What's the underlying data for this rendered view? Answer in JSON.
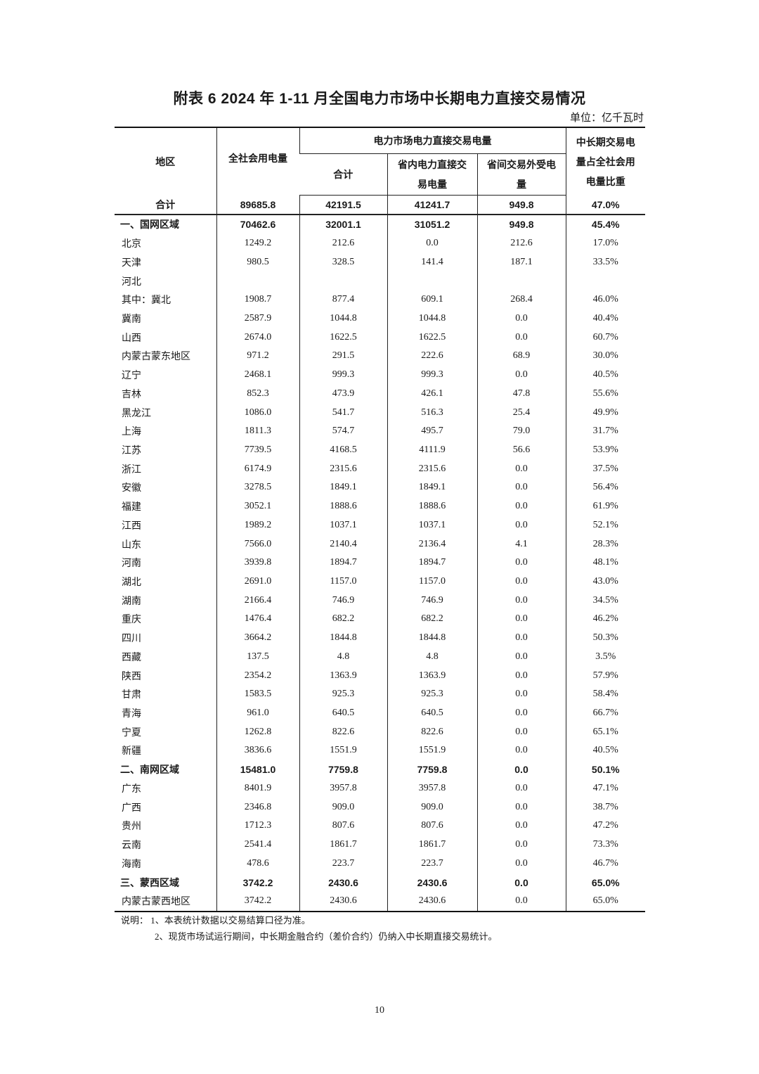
{
  "title": "附表 6   2024 年 1-11 月全国电力市场中长期电力直接交易情况",
  "unit": "单位：亿千瓦时",
  "columns": {
    "region": "地区",
    "total_consumption": "全社会用电量",
    "direct_trade_group": "电力市场电力直接交易电量",
    "direct_total": "合计",
    "intra_province": "省内电力直接交易电量",
    "inter_province": "省间交易外受电量",
    "share": "中长期交易电量占全社会用电量比重"
  },
  "rows": [
    {
      "type": "total",
      "region": "合计",
      "values": [
        "89685.8",
        "42191.5",
        "41241.7",
        "949.8",
        "47.0%"
      ]
    },
    {
      "type": "region",
      "region": "一、国网区域",
      "values": [
        "70462.6",
        "32001.1",
        "31051.2",
        "949.8",
        "45.4%"
      ]
    },
    {
      "region": "北京",
      "values": [
        "1249.2",
        "212.6",
        "0.0",
        "212.6",
        "17.0%"
      ]
    },
    {
      "region": "天津",
      "values": [
        "980.5",
        "328.5",
        "141.4",
        "187.1",
        "33.5%"
      ]
    },
    {
      "region": "河北",
      "values": [
        "",
        "",
        "",
        "",
        ""
      ]
    },
    {
      "region": "其中：冀北",
      "values": [
        "1908.7",
        "877.4",
        "609.1",
        "268.4",
        "46.0%"
      ]
    },
    {
      "region": "冀南",
      "values": [
        "2587.9",
        "1044.8",
        "1044.8",
        "0.0",
        "40.4%"
      ]
    },
    {
      "region": "山西",
      "values": [
        "2674.0",
        "1622.5",
        "1622.5",
        "0.0",
        "60.7%"
      ]
    },
    {
      "region": "内蒙古蒙东地区",
      "values": [
        "971.2",
        "291.5",
        "222.6",
        "68.9",
        "30.0%"
      ]
    },
    {
      "region": "辽宁",
      "values": [
        "2468.1",
        "999.3",
        "999.3",
        "0.0",
        "40.5%"
      ]
    },
    {
      "region": "吉林",
      "values": [
        "852.3",
        "473.9",
        "426.1",
        "47.8",
        "55.6%"
      ]
    },
    {
      "region": "黑龙江",
      "values": [
        "1086.0",
        "541.7",
        "516.3",
        "25.4",
        "49.9%"
      ]
    },
    {
      "region": "上海",
      "values": [
        "1811.3",
        "574.7",
        "495.7",
        "79.0",
        "31.7%"
      ]
    },
    {
      "region": "江苏",
      "values": [
        "7739.5",
        "4168.5",
        "4111.9",
        "56.6",
        "53.9%"
      ]
    },
    {
      "region": "浙江",
      "values": [
        "6174.9",
        "2315.6",
        "2315.6",
        "0.0",
        "37.5%"
      ]
    },
    {
      "region": "安徽",
      "values": [
        "3278.5",
        "1849.1",
        "1849.1",
        "0.0",
        "56.4%"
      ]
    },
    {
      "region": "福建",
      "values": [
        "3052.1",
        "1888.6",
        "1888.6",
        "0.0",
        "61.9%"
      ]
    },
    {
      "region": "江西",
      "values": [
        "1989.2",
        "1037.1",
        "1037.1",
        "0.0",
        "52.1%"
      ]
    },
    {
      "region": "山东",
      "values": [
        "7566.0",
        "2140.4",
        "2136.4",
        "4.1",
        "28.3%"
      ]
    },
    {
      "region": "河南",
      "values": [
        "3939.8",
        "1894.7",
        "1894.7",
        "0.0",
        "48.1%"
      ]
    },
    {
      "region": "湖北",
      "values": [
        "2691.0",
        "1157.0",
        "1157.0",
        "0.0",
        "43.0%"
      ]
    },
    {
      "region": "湖南",
      "values": [
        "2166.4",
        "746.9",
        "746.9",
        "0.0",
        "34.5%"
      ]
    },
    {
      "region": "重庆",
      "values": [
        "1476.4",
        "682.2",
        "682.2",
        "0.0",
        "46.2%"
      ]
    },
    {
      "region": "四川",
      "values": [
        "3664.2",
        "1844.8",
        "1844.8",
        "0.0",
        "50.3%"
      ]
    },
    {
      "region": "西藏",
      "values": [
        "137.5",
        "4.8",
        "4.8",
        "0.0",
        "3.5%"
      ]
    },
    {
      "region": "陕西",
      "values": [
        "2354.2",
        "1363.9",
        "1363.9",
        "0.0",
        "57.9%"
      ]
    },
    {
      "region": "甘肃",
      "values": [
        "1583.5",
        "925.3",
        "925.3",
        "0.0",
        "58.4%"
      ]
    },
    {
      "region": "青海",
      "values": [
        "961.0",
        "640.5",
        "640.5",
        "0.0",
        "66.7%"
      ]
    },
    {
      "region": "宁夏",
      "values": [
        "1262.8",
        "822.6",
        "822.6",
        "0.0",
        "65.1%"
      ]
    },
    {
      "region": "新疆",
      "values": [
        "3836.6",
        "1551.9",
        "1551.9",
        "0.0",
        "40.5%"
      ]
    },
    {
      "type": "region",
      "region": "二、南网区域",
      "values": [
        "15481.0",
        "7759.8",
        "7759.8",
        "0.0",
        "50.1%"
      ]
    },
    {
      "region": "广东",
      "values": [
        "8401.9",
        "3957.8",
        "3957.8",
        "0.0",
        "47.1%"
      ]
    },
    {
      "region": "广西",
      "values": [
        "2346.8",
        "909.0",
        "909.0",
        "0.0",
        "38.7%"
      ]
    },
    {
      "region": "贵州",
      "values": [
        "1712.3",
        "807.6",
        "807.6",
        "0.0",
        "47.2%"
      ]
    },
    {
      "region": "云南",
      "values": [
        "2541.4",
        "1861.7",
        "1861.7",
        "0.0",
        "73.3%"
      ]
    },
    {
      "region": "海南",
      "values": [
        "478.6",
        "223.7",
        "223.7",
        "0.0",
        "46.7%"
      ]
    },
    {
      "type": "region",
      "region": "三、蒙西区域",
      "values": [
        "3742.2",
        "2430.6",
        "2430.6",
        "0.0",
        "65.0%"
      ]
    },
    {
      "region": "内蒙古蒙西地区",
      "values": [
        "3742.2",
        "2430.6",
        "2430.6",
        "0.0",
        "65.0%"
      ]
    }
  ],
  "notes": {
    "note1": "说明：  1、本表统计数据以交易结算口径为准。",
    "note2": "2、现货市场试运行期间，中长期金融合约（差价合约）仍纳入中长期直接交易统计。"
  },
  "page_number": "10"
}
